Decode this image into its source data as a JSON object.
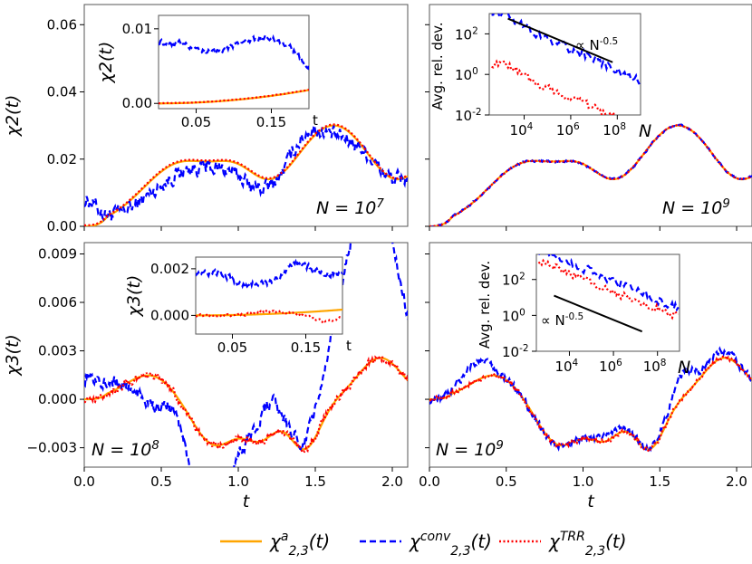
{
  "colors": {
    "analytic": "#FFA500",
    "conv": "#0000FF",
    "trr": "#FF0000"
  },
  "legend": {
    "analytic": "χ^a_{2,3}(t)",
    "conv": "χ^{conv}_{2,3}(t)",
    "trr": "χ^{TRR}_{2,3}(t)"
  },
  "chart_data": [
    {
      "id": "p1",
      "type": "line",
      "ylabel": "χ2(t)",
      "xlim": [
        0,
        2.1
      ],
      "ylim": [
        0,
        0.066
      ],
      "xticks": [
        0.0,
        0.5,
        1.0,
        1.5,
        2.0
      ],
      "xtick_labels": [
        "",
        "",
        "",
        "",
        ""
      ],
      "yticks": [
        0.0,
        0.02,
        0.04,
        0.06
      ],
      "ytick_labels": [
        "0.00",
        "0.02",
        "0.04",
        "0.06"
      ],
      "annotation": "N = 10^7",
      "inset": {
        "xlim": [
          0.0,
          0.2
        ],
        "ylim": [
          -0.0007,
          0.0118
        ],
        "xticks": [
          0.05,
          0.15
        ],
        "xtick_labels": [
          "0.05",
          "0.15"
        ],
        "yticks": [
          0.0,
          0.01
        ],
        "ytick_labels": [
          "0.00",
          "0.01"
        ],
        "ylabel": "χ2(t)",
        "xlabel": "t"
      }
    },
    {
      "id": "p2",
      "type": "line",
      "xlim": [
        0,
        2.1
      ],
      "ylim": [
        0,
        0.066
      ],
      "xticks": [
        0.0,
        0.5,
        1.0,
        1.5,
        2.0
      ],
      "xtick_labels": [
        "",
        "",
        "",
        "",
        ""
      ],
      "yticks": [
        0.0,
        0.02,
        0.04,
        0.06
      ],
      "ytick_labels": [
        "",
        "",
        "",
        ""
      ],
      "annotation": "N = 10^9",
      "inset": {
        "type": "loglog",
        "xlim_log10": [
          2.5,
          9.0
        ],
        "ylim_log10": [
          -2.0,
          3.0
        ],
        "xticks": [
          4,
          6,
          8
        ],
        "xtick_labels": [
          "10^4",
          "10^6",
          "10^8"
        ],
        "yticks": [
          2,
          0,
          -2
        ],
        "ytick_labels": [
          "10^2",
          "10^0",
          "10^-2"
        ],
        "ylabel": "Avg. rel. dev.",
        "xlabel": "N",
        "slope_label": "∝ N^-0.5"
      }
    },
    {
      "id": "p3",
      "type": "line",
      "ylabel": "χ3(t)",
      "xlabel": "t",
      "xlim": [
        0,
        2.1
      ],
      "ylim": [
        -0.0042,
        0.0097
      ],
      "xticks": [
        0.0,
        0.5,
        1.0,
        1.5,
        2.0
      ],
      "xtick_labels": [
        "0.0",
        "0.5",
        "1.0",
        "1.5",
        "2.0"
      ],
      "yticks": [
        -0.003,
        0.0,
        0.003,
        0.006,
        0.009
      ],
      "ytick_labels": [
        "−0.003",
        "0.000",
        "0.003",
        "0.006",
        "0.009"
      ],
      "annotation": "N = 10^8",
      "inset": {
        "xlim": [
          0.0,
          0.2
        ],
        "ylim": [
          -0.0008,
          0.0025
        ],
        "xticks": [
          0.05,
          0.15
        ],
        "xtick_labels": [
          "0.05",
          "0.15"
        ],
        "yticks": [
          0.0,
          0.002
        ],
        "ytick_labels": [
          "0.000",
          "0.002"
        ],
        "ylabel": "χ3(t)",
        "xlabel": "t"
      }
    },
    {
      "id": "p4",
      "type": "line",
      "xlabel": "t",
      "xlim": [
        0,
        2.1
      ],
      "ylim": [
        -0.0042,
        0.0097
      ],
      "xticks": [
        0.0,
        0.5,
        1.0,
        1.5,
        2.0
      ],
      "xtick_labels": [
        "0.0",
        "0.5",
        "1.0",
        "1.5",
        "2.0"
      ],
      "yticks": [
        -0.003,
        0.0,
        0.003,
        0.006,
        0.009
      ],
      "ytick_labels": [
        "",
        "",
        "",
        "",
        ""
      ],
      "annotation": "N = 10^9",
      "inset": {
        "type": "loglog",
        "xlim_log10": [
          2.5,
          9.0
        ],
        "ylim_log10": [
          -2.0,
          3.4
        ],
        "xticks": [
          4,
          6,
          8
        ],
        "xtick_labels": [
          "10^4",
          "10^6",
          "10^8"
        ],
        "yticks": [
          2,
          0,
          -2
        ],
        "ytick_labels": [
          "10^2",
          "10^0",
          "10^-2"
        ],
        "ylabel": "Avg. rel. dev.",
        "xlabel": "N",
        "slope_label": "∝ N^-0.5"
      }
    }
  ]
}
